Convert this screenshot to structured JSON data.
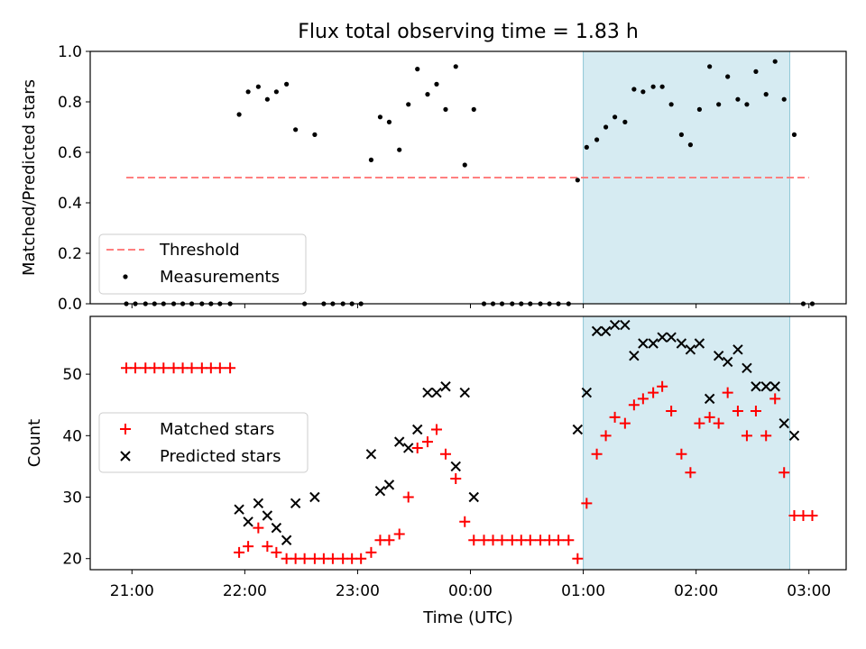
{
  "chart_data": [
    {
      "type": "scatter",
      "title": "Flux total observing time = 1.83 h",
      "xlabel": "",
      "ylabel": "Matched/Predicted stars",
      "ylim": [
        0,
        1.0
      ],
      "yticks": [
        "0.0",
        "0.2",
        "0.4",
        "0.6",
        "0.8",
        "1.0"
      ],
      "xlim_hours": [
        20.63,
        27.33
      ],
      "xticks": [
        "21:00",
        "22:00",
        "23:00",
        "00:00",
        "01:00",
        "02:00",
        "03:00"
      ],
      "shaded_span_hours": [
        25.0,
        26.83
      ],
      "legend_position": "lower-left",
      "series": [
        {
          "name": "Threshold",
          "style": "dashed-line",
          "color": "#ff7f7f",
          "x_hours": [
            20.95,
            27.0
          ],
          "values": [
            0.5,
            0.5
          ]
        },
        {
          "name": "Measurements",
          "style": "dot",
          "color": "#000000",
          "x_hours": [
            20.95,
            21.03,
            21.12,
            21.2,
            21.28,
            21.37,
            21.45,
            21.53,
            21.62,
            21.7,
            21.78,
            21.87,
            21.95,
            22.03,
            22.12,
            22.2,
            22.28,
            22.37,
            22.45,
            22.53,
            22.62,
            22.7,
            22.78,
            22.87,
            22.95,
            23.03,
            23.12,
            23.2,
            23.28,
            23.37,
            23.45,
            23.53,
            23.62,
            23.7,
            23.78,
            23.87,
            23.95,
            24.03,
            24.12,
            24.2,
            24.28,
            24.37,
            24.45,
            24.53,
            24.62,
            24.7,
            24.78,
            24.87,
            24.95,
            25.03,
            25.12,
            25.2,
            25.28,
            25.37,
            25.45,
            25.53,
            25.62,
            25.7,
            25.78,
            25.87,
            25.95,
            26.03,
            26.12,
            26.2,
            26.28,
            26.37,
            26.45,
            26.53,
            26.62,
            26.7,
            26.78,
            26.87,
            26.95,
            27.03
          ],
          "values": [
            0.0,
            0.0,
            0.0,
            0.0,
            0.0,
            0.0,
            0.0,
            0.0,
            0.0,
            0.0,
            0.0,
            0.0,
            0.75,
            0.84,
            0.86,
            0.81,
            0.84,
            0.87,
            0.69,
            0.0,
            0.67,
            0.0,
            0.0,
            0.0,
            0.0,
            0.0,
            0.57,
            0.74,
            0.72,
            0.61,
            0.79,
            0.93,
            0.83,
            0.87,
            0.77,
            0.94,
            0.55,
            0.77,
            0.0,
            0.0,
            0.0,
            0.0,
            0.0,
            0.0,
            0.0,
            0.0,
            0.0,
            0.0,
            0.49,
            0.62,
            0.65,
            0.7,
            0.74,
            0.72,
            0.85,
            0.84,
            0.86,
            0.86,
            0.79,
            0.67,
            0.63,
            0.77,
            0.94,
            0.79,
            0.9,
            0.81,
            0.79,
            0.92,
            0.83,
            0.96,
            0.81,
            0.67,
            0.0,
            0.0
          ]
        }
      ]
    },
    {
      "type": "scatter",
      "title": "",
      "xlabel": "Time (UTC)",
      "ylabel": "Count",
      "ylim": [
        18.2,
        59.4
      ],
      "yticks": [
        "20",
        "30",
        "40",
        "50"
      ],
      "xlim_hours": [
        20.63,
        27.33
      ],
      "xticks": [
        "21:00",
        "22:00",
        "23:00",
        "00:00",
        "01:00",
        "02:00",
        "03:00"
      ],
      "shaded_span_hours": [
        25.0,
        26.83
      ],
      "legend_position": "center-left",
      "series": [
        {
          "name": "Matched stars",
          "style": "plus",
          "color": "#ff0000",
          "x_hours": [
            20.95,
            21.03,
            21.12,
            21.2,
            21.28,
            21.37,
            21.45,
            21.53,
            21.62,
            21.7,
            21.78,
            21.87,
            21.95,
            22.03,
            22.12,
            22.2,
            22.28,
            22.37,
            22.45,
            22.53,
            22.62,
            22.7,
            22.78,
            22.87,
            22.95,
            23.03,
            23.12,
            23.2,
            23.28,
            23.37,
            23.45,
            23.53,
            23.62,
            23.7,
            23.78,
            23.87,
            23.95,
            24.03,
            24.12,
            24.2,
            24.28,
            24.37,
            24.45,
            24.53,
            24.62,
            24.7,
            24.78,
            24.87,
            24.95,
            25.03,
            25.12,
            25.2,
            25.28,
            25.37,
            25.45,
            25.53,
            25.62,
            25.7,
            25.78,
            25.87,
            25.95,
            26.03,
            26.12,
            26.2,
            26.28,
            26.37,
            26.45,
            26.53,
            26.62,
            26.7,
            26.78,
            26.87,
            26.95,
            27.03
          ],
          "values": [
            51,
            51,
            51,
            51,
            51,
            51,
            51,
            51,
            51,
            51,
            51,
            51,
            21,
            22,
            25,
            22,
            21,
            20,
            20,
            20,
            20,
            20,
            20,
            20,
            20,
            20,
            21,
            23,
            23,
            24,
            30,
            38,
            39,
            41,
            37,
            33,
            26,
            23,
            23,
            23,
            23,
            23,
            23,
            23,
            23,
            23,
            23,
            23,
            20,
            29,
            37,
            40,
            43,
            42,
            45,
            46,
            47,
            48,
            44,
            37,
            34,
            42,
            43,
            42,
            47,
            44,
            40,
            44,
            40,
            46,
            34,
            27,
            27,
            27
          ]
        },
        {
          "name": "Predicted stars",
          "style": "x",
          "color": "#000000",
          "x_hours": [
            21.95,
            22.03,
            22.12,
            22.2,
            22.28,
            22.37,
            22.45,
            22.62,
            23.12,
            23.2,
            23.28,
            23.37,
            23.45,
            23.53,
            23.62,
            23.7,
            23.78,
            23.87,
            23.95,
            24.03,
            24.95,
            25.03,
            25.12,
            25.2,
            25.28,
            25.37,
            25.45,
            25.53,
            25.62,
            25.7,
            25.78,
            25.87,
            25.95,
            26.03,
            26.12,
            26.2,
            26.28,
            26.37,
            26.45,
            26.53,
            26.62,
            26.7,
            26.78,
            26.87
          ],
          "values": [
            28,
            26,
            29,
            27,
            25,
            23,
            29,
            30,
            37,
            31,
            32,
            39,
            38,
            41,
            47,
            47,
            48,
            35,
            47,
            30,
            41,
            47,
            57,
            57,
            58,
            58,
            53,
            55,
            55,
            56,
            56,
            55,
            54,
            55,
            46,
            53,
            52,
            54,
            51,
            48,
            48,
            48,
            42,
            40
          ]
        }
      ]
    }
  ]
}
